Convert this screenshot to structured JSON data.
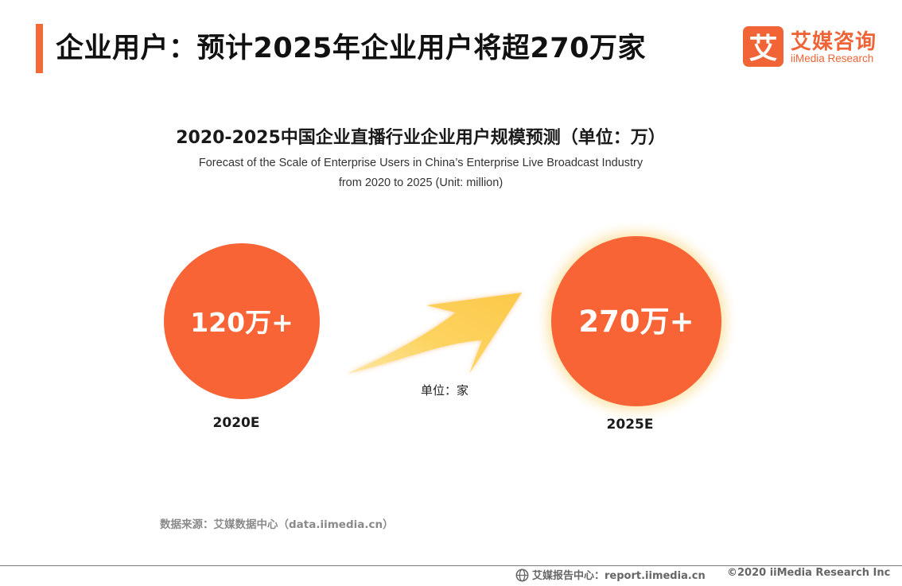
{
  "header": {
    "title": "企业用户：预计2025年企业用户将超270万家",
    "logo_cn": "艾媒咨询",
    "logo_en": "iiMedia Research",
    "logo_mark": "艾"
  },
  "chart_data": {
    "type": "bubble",
    "title": "2020-2025中国企业直播行业企业用户规模预测（单位：万）",
    "subtitle_line1": "Forecast of the Scale of Enterprise Users in China’s Enterprise Live Broadcast Industry",
    "subtitle_line2": "from 2020 to 2025 (Unit: million)",
    "categories": [
      "2020E",
      "2025E"
    ],
    "values": [
      120,
      270
    ],
    "data_labels": [
      "120万+",
      "270万+"
    ],
    "unit_note": "单位：家",
    "colors": {
      "bubble": "#f96436",
      "arrow": "#fdd25e",
      "glow": "#fde7b0"
    }
  },
  "footer": {
    "source": "数据来源：艾媒数据中心（data.iimedia.cn）",
    "report": "艾媒报告中心：report.iimedia.cn",
    "copyright": "©2020  iiMedia Research  Inc",
    "report_icon": "globe-icon"
  }
}
